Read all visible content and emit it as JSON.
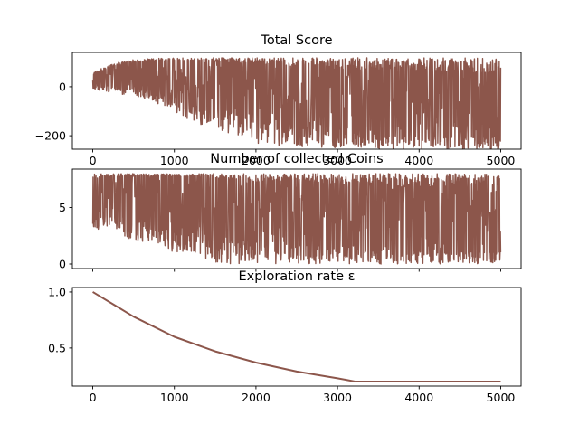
{
  "chart_data": [
    {
      "type": "line",
      "title": "Total Score",
      "xlabel": "",
      "ylabel": "",
      "xlim": [
        -250,
        5250
      ],
      "ylim": [
        -255,
        140
      ],
      "xticks": [
        0,
        1000,
        2000,
        3000,
        4000,
        5000
      ],
      "yticks": [
        -200,
        0
      ],
      "xtick_labels": [
        "0",
        "1000",
        "2000",
        "3000",
        "4000",
        "5000"
      ],
      "ytick_labels": [
        "−200",
        "0"
      ],
      "grid": false,
      "color": "#8c564b",
      "series": [
        {
          "x": [
            0,
            250,
            500,
            750,
            1000,
            1250,
            1500,
            1750,
            2000,
            2250,
            2500,
            2750,
            3000,
            3250,
            3500,
            3750,
            4000,
            4250,
            4500,
            4750,
            5000
          ],
          "upper": [
            60,
            95,
            110,
            115,
            118,
            118,
            118,
            118,
            118,
            118,
            118,
            118,
            118,
            118,
            118,
            118,
            118,
            118,
            118,
            118,
            118
          ],
          "lower": [
            -10,
            -30,
            -35,
            -60,
            -110,
            -150,
            -170,
            -200,
            -230,
            -240,
            -245,
            -250,
            -255,
            -255,
            -255,
            -255,
            -255,
            -255,
            -255,
            -255,
            -255
          ],
          "median": [
            20,
            40,
            60,
            70,
            75,
            70,
            55,
            30,
            0,
            -20,
            -40,
            -60,
            -80,
            -90,
            -100,
            -110,
            -115,
            -120,
            -125,
            -130,
            -135
          ]
        }
      ]
    },
    {
      "type": "line",
      "title": "Number of collected Coins",
      "xlabel": "",
      "ylabel": "",
      "xlim": [
        -250,
        5250
      ],
      "ylim": [
        -0.4,
        8.4
      ],
      "xticks": [
        0,
        1000,
        2000,
        3000,
        4000,
        5000
      ],
      "yticks": [
        0,
        5
      ],
      "xtick_labels": [
        "",
        "",
        "",
        "",
        "",
        ""
      ],
      "ytick_labels": [
        "0",
        "5"
      ],
      "grid": false,
      "color": "#8c564b",
      "series": [
        {
          "x": [
            0,
            250,
            500,
            750,
            1000,
            1250,
            1500,
            1750,
            2000,
            2250,
            2500,
            2750,
            3000,
            3250,
            3500,
            3750,
            4000,
            4250,
            4500,
            4750,
            5000
          ],
          "upper": [
            8,
            8,
            8,
            8,
            8,
            8,
            8,
            8,
            8,
            8,
            8,
            8,
            8,
            8,
            8,
            8,
            8,
            8,
            8,
            8,
            8
          ],
          "lower": [
            3,
            3,
            2,
            2,
            1,
            1,
            0,
            0,
            0,
            0,
            0,
            0,
            0,
            0,
            0,
            0,
            0,
            0,
            0,
            0,
            0
          ],
          "median": [
            6,
            7,
            7,
            7,
            7,
            7,
            6,
            6,
            5,
            5,
            5,
            4,
            4,
            4,
            4,
            3,
            3,
            3,
            3,
            3,
            3
          ]
        }
      ]
    },
    {
      "type": "line",
      "title": "Exploration rate ε",
      "xlabel": "",
      "ylabel": "",
      "xlim": [
        -250,
        5250
      ],
      "ylim": [
        0.16,
        1.04
      ],
      "xticks": [
        0,
        1000,
        2000,
        3000,
        4000,
        5000
      ],
      "yticks": [
        0.5,
        1.0
      ],
      "xtick_labels": [
        "0",
        "1000",
        "2000",
        "3000",
        "4000",
        "5000"
      ],
      "ytick_labels": [
        "0.5",
        "1.0"
      ],
      "grid": false,
      "color": "#8c564b",
      "series": [
        {
          "x": [
            0,
            500,
            1000,
            1500,
            2000,
            2500,
            3000,
            3220,
            3500,
            4000,
            4500,
            5000
          ],
          "values": [
            1.0,
            0.78,
            0.6,
            0.47,
            0.37,
            0.29,
            0.23,
            0.2,
            0.2,
            0.2,
            0.2,
            0.2
          ]
        }
      ]
    }
  ]
}
